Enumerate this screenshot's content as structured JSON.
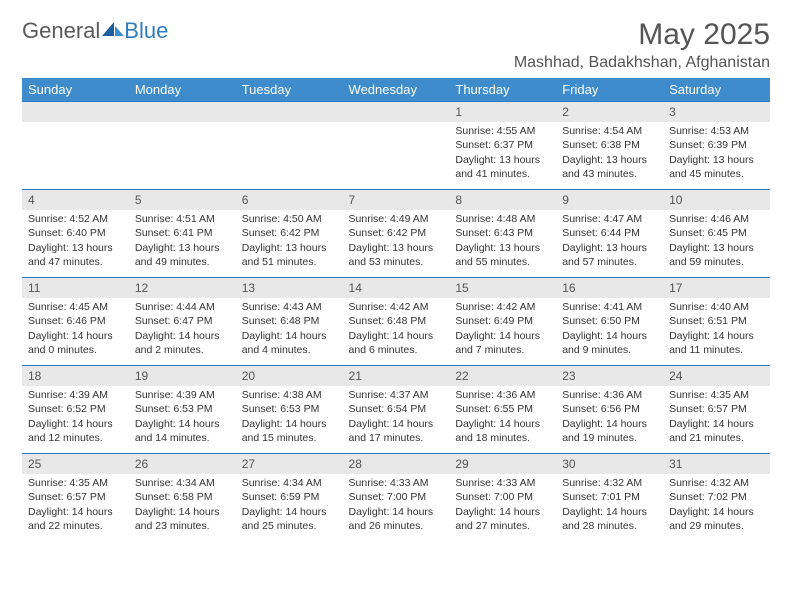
{
  "logo": {
    "text_general": "General",
    "text_blue": "Blue"
  },
  "header": {
    "month_title": "May 2025",
    "location": "Mashhad, Badakhshan, Afghanistan"
  },
  "colors": {
    "header_bg": "#3e8ccc",
    "daynum_bg": "#e8e8e8",
    "row_border": "#2f7bbf",
    "text": "#333333"
  },
  "weekdays": [
    "Sunday",
    "Monday",
    "Tuesday",
    "Wednesday",
    "Thursday",
    "Friday",
    "Saturday"
  ],
  "weeks": [
    [
      {
        "blank": true
      },
      {
        "blank": true
      },
      {
        "blank": true
      },
      {
        "blank": true
      },
      {
        "day": "1",
        "sunrise": "Sunrise: 4:55 AM",
        "sunset": "Sunset: 6:37 PM",
        "daylight": "Daylight: 13 hours and 41 minutes."
      },
      {
        "day": "2",
        "sunrise": "Sunrise: 4:54 AM",
        "sunset": "Sunset: 6:38 PM",
        "daylight": "Daylight: 13 hours and 43 minutes."
      },
      {
        "day": "3",
        "sunrise": "Sunrise: 4:53 AM",
        "sunset": "Sunset: 6:39 PM",
        "daylight": "Daylight: 13 hours and 45 minutes."
      }
    ],
    [
      {
        "day": "4",
        "sunrise": "Sunrise: 4:52 AM",
        "sunset": "Sunset: 6:40 PM",
        "daylight": "Daylight: 13 hours and 47 minutes."
      },
      {
        "day": "5",
        "sunrise": "Sunrise: 4:51 AM",
        "sunset": "Sunset: 6:41 PM",
        "daylight": "Daylight: 13 hours and 49 minutes."
      },
      {
        "day": "6",
        "sunrise": "Sunrise: 4:50 AM",
        "sunset": "Sunset: 6:42 PM",
        "daylight": "Daylight: 13 hours and 51 minutes."
      },
      {
        "day": "7",
        "sunrise": "Sunrise: 4:49 AM",
        "sunset": "Sunset: 6:42 PM",
        "daylight": "Daylight: 13 hours and 53 minutes."
      },
      {
        "day": "8",
        "sunrise": "Sunrise: 4:48 AM",
        "sunset": "Sunset: 6:43 PM",
        "daylight": "Daylight: 13 hours and 55 minutes."
      },
      {
        "day": "9",
        "sunrise": "Sunrise: 4:47 AM",
        "sunset": "Sunset: 6:44 PM",
        "daylight": "Daylight: 13 hours and 57 minutes."
      },
      {
        "day": "10",
        "sunrise": "Sunrise: 4:46 AM",
        "sunset": "Sunset: 6:45 PM",
        "daylight": "Daylight: 13 hours and 59 minutes."
      }
    ],
    [
      {
        "day": "11",
        "sunrise": "Sunrise: 4:45 AM",
        "sunset": "Sunset: 6:46 PM",
        "daylight": "Daylight: 14 hours and 0 minutes."
      },
      {
        "day": "12",
        "sunrise": "Sunrise: 4:44 AM",
        "sunset": "Sunset: 6:47 PM",
        "daylight": "Daylight: 14 hours and 2 minutes."
      },
      {
        "day": "13",
        "sunrise": "Sunrise: 4:43 AM",
        "sunset": "Sunset: 6:48 PM",
        "daylight": "Daylight: 14 hours and 4 minutes."
      },
      {
        "day": "14",
        "sunrise": "Sunrise: 4:42 AM",
        "sunset": "Sunset: 6:48 PM",
        "daylight": "Daylight: 14 hours and 6 minutes."
      },
      {
        "day": "15",
        "sunrise": "Sunrise: 4:42 AM",
        "sunset": "Sunset: 6:49 PM",
        "daylight": "Daylight: 14 hours and 7 minutes."
      },
      {
        "day": "16",
        "sunrise": "Sunrise: 4:41 AM",
        "sunset": "Sunset: 6:50 PM",
        "daylight": "Daylight: 14 hours and 9 minutes."
      },
      {
        "day": "17",
        "sunrise": "Sunrise: 4:40 AM",
        "sunset": "Sunset: 6:51 PM",
        "daylight": "Daylight: 14 hours and 11 minutes."
      }
    ],
    [
      {
        "day": "18",
        "sunrise": "Sunrise: 4:39 AM",
        "sunset": "Sunset: 6:52 PM",
        "daylight": "Daylight: 14 hours and 12 minutes."
      },
      {
        "day": "19",
        "sunrise": "Sunrise: 4:39 AM",
        "sunset": "Sunset: 6:53 PM",
        "daylight": "Daylight: 14 hours and 14 minutes."
      },
      {
        "day": "20",
        "sunrise": "Sunrise: 4:38 AM",
        "sunset": "Sunset: 6:53 PM",
        "daylight": "Daylight: 14 hours and 15 minutes."
      },
      {
        "day": "21",
        "sunrise": "Sunrise: 4:37 AM",
        "sunset": "Sunset: 6:54 PM",
        "daylight": "Daylight: 14 hours and 17 minutes."
      },
      {
        "day": "22",
        "sunrise": "Sunrise: 4:36 AM",
        "sunset": "Sunset: 6:55 PM",
        "daylight": "Daylight: 14 hours and 18 minutes."
      },
      {
        "day": "23",
        "sunrise": "Sunrise: 4:36 AM",
        "sunset": "Sunset: 6:56 PM",
        "daylight": "Daylight: 14 hours and 19 minutes."
      },
      {
        "day": "24",
        "sunrise": "Sunrise: 4:35 AM",
        "sunset": "Sunset: 6:57 PM",
        "daylight": "Daylight: 14 hours and 21 minutes."
      }
    ],
    [
      {
        "day": "25",
        "sunrise": "Sunrise: 4:35 AM",
        "sunset": "Sunset: 6:57 PM",
        "daylight": "Daylight: 14 hours and 22 minutes."
      },
      {
        "day": "26",
        "sunrise": "Sunrise: 4:34 AM",
        "sunset": "Sunset: 6:58 PM",
        "daylight": "Daylight: 14 hours and 23 minutes."
      },
      {
        "day": "27",
        "sunrise": "Sunrise: 4:34 AM",
        "sunset": "Sunset: 6:59 PM",
        "daylight": "Daylight: 14 hours and 25 minutes."
      },
      {
        "day": "28",
        "sunrise": "Sunrise: 4:33 AM",
        "sunset": "Sunset: 7:00 PM",
        "daylight": "Daylight: 14 hours and 26 minutes."
      },
      {
        "day": "29",
        "sunrise": "Sunrise: 4:33 AM",
        "sunset": "Sunset: 7:00 PM",
        "daylight": "Daylight: 14 hours and 27 minutes."
      },
      {
        "day": "30",
        "sunrise": "Sunrise: 4:32 AM",
        "sunset": "Sunset: 7:01 PM",
        "daylight": "Daylight: 14 hours and 28 minutes."
      },
      {
        "day": "31",
        "sunrise": "Sunrise: 4:32 AM",
        "sunset": "Sunset: 7:02 PM",
        "daylight": "Daylight: 14 hours and 29 minutes."
      }
    ]
  ]
}
